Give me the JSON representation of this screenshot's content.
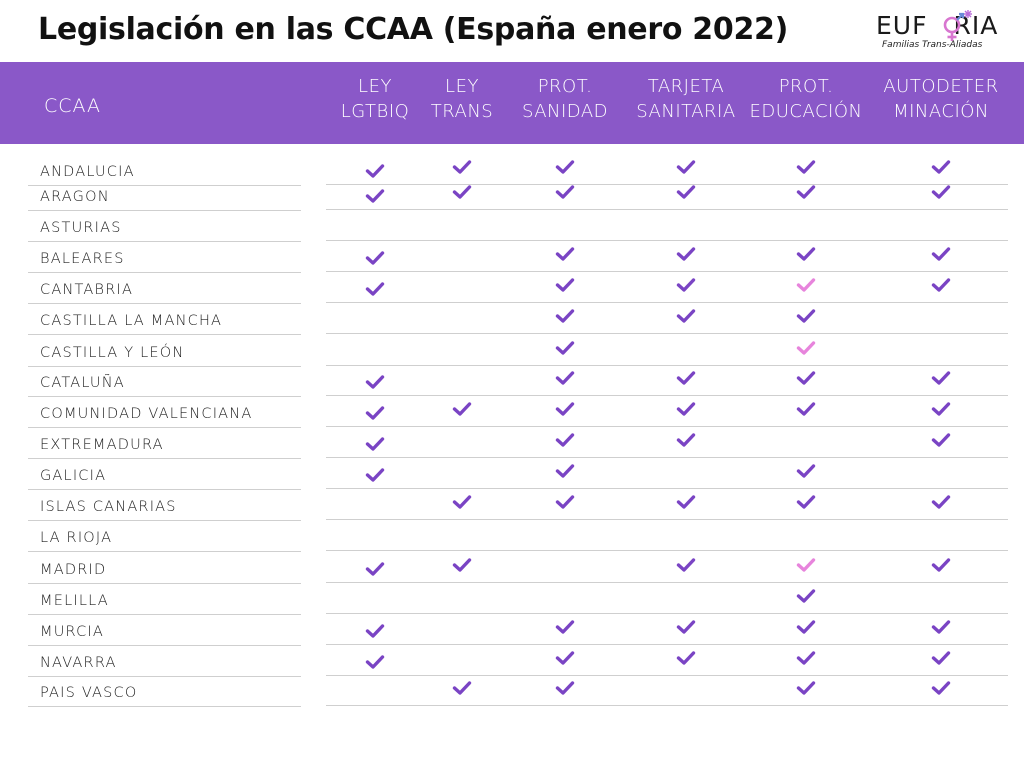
{
  "title": "Legislación en las CCAA (España enero 2022)",
  "logo": {
    "word_left": "EUF",
    "word_right": "RIA",
    "subtitle": "Familias Trans-Aliadas"
  },
  "colors": {
    "header": "#8a58c8",
    "check": "#7a44c4",
    "check_pink": "#e784dc"
  },
  "table": {
    "row_header": "CCAA",
    "columns": [
      {
        "line1": "LEY",
        "line2": "LGTBIQ"
      },
      {
        "line1": "LEY",
        "line2": "TRANS"
      },
      {
        "line1": "PROT.",
        "line2": "SANIDAD"
      },
      {
        "line1": "TARJETA",
        "line2": "SANITARIA"
      },
      {
        "line1": "PROT.",
        "line2": "EDUCACIÓN"
      },
      {
        "line1": "AUTODETER",
        "line2": "MINACIÓN"
      }
    ],
    "rows": [
      {
        "name": "ANDALUCIA",
        "marks": [
          1,
          1,
          1,
          1,
          1,
          1
        ]
      },
      {
        "name": "ARAGON",
        "marks": [
          1,
          1,
          1,
          1,
          1,
          1
        ]
      },
      {
        "name": "ASTURIAS",
        "marks": [
          0,
          0,
          0,
          0,
          0,
          0
        ]
      },
      {
        "name": "BALEARES",
        "marks": [
          1,
          0,
          1,
          1,
          1,
          1
        ]
      },
      {
        "name": "CANTABRIA",
        "marks": [
          1,
          0,
          1,
          1,
          2,
          1
        ]
      },
      {
        "name": "CASTILLA LA MANCHA",
        "marks": [
          0,
          0,
          1,
          1,
          1,
          0
        ]
      },
      {
        "name": "CASTILLA Y LEÓN",
        "marks": [
          0,
          0,
          1,
          0,
          2,
          0
        ]
      },
      {
        "name": "CATALUÑA",
        "marks": [
          1,
          0,
          1,
          1,
          1,
          1
        ]
      },
      {
        "name": "COMUNIDAD VALENCIANA",
        "marks": [
          1,
          1,
          1,
          1,
          1,
          1
        ]
      },
      {
        "name": "EXTREMADURA",
        "marks": [
          1,
          0,
          1,
          1,
          0,
          1
        ]
      },
      {
        "name": "GALICIA",
        "marks": [
          1,
          0,
          1,
          0,
          1,
          0
        ]
      },
      {
        "name": "ISLAS CANARIAS",
        "marks": [
          0,
          1,
          1,
          1,
          1,
          1
        ]
      },
      {
        "name": "LA RIOJA",
        "marks": [
          0,
          0,
          0,
          0,
          0,
          0
        ]
      },
      {
        "name": "MADRID",
        "marks": [
          1,
          1,
          0,
          1,
          2,
          1
        ]
      },
      {
        "name": "MELILLA",
        "marks": [
          0,
          0,
          0,
          0,
          1,
          0
        ]
      },
      {
        "name": "MURCIA",
        "marks": [
          1,
          0,
          1,
          1,
          1,
          1
        ]
      },
      {
        "name": "NAVARRA",
        "marks": [
          1,
          0,
          1,
          1,
          1,
          1
        ]
      },
      {
        "name": "PAIS VASCO",
        "marks": [
          0,
          1,
          1,
          0,
          1,
          1
        ]
      }
    ]
  }
}
